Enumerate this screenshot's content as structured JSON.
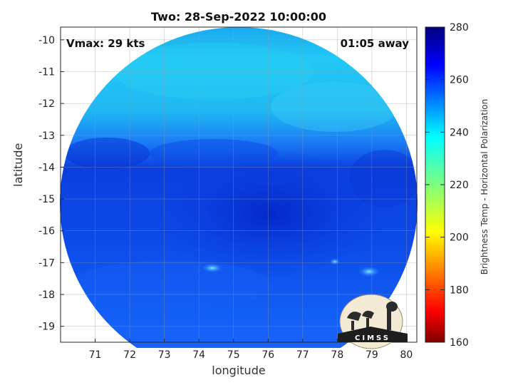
{
  "title": "Two: 28-Sep-2022 10:00:00",
  "vmax_label": "Vmax: 29 kts",
  "time_away_label": "01:05 away",
  "map": {
    "xlabel": "longitude",
    "ylabel": "latitude",
    "x_ticks": [
      "71",
      "72",
      "73",
      "74",
      "75",
      "76",
      "77",
      "78",
      "79",
      "80"
    ],
    "y_ticks": [
      "-10",
      "-11",
      "-12",
      "-13",
      "-14",
      "-15",
      "-16",
      "-17",
      "-18",
      "-19"
    ],
    "x_range": [
      70.0,
      80.3
    ],
    "y_range": [
      -19.5,
      -9.6
    ],
    "grid": true,
    "field": "microwave brightness temperature swath centred near 75.3E, 14.8S"
  },
  "colorbar": {
    "label": "Brightness Temp - Horizontal Polarization",
    "ticks": [
      "280",
      "260",
      "240",
      "220",
      "200",
      "180",
      "160"
    ],
    "range": [
      160,
      280
    ],
    "colormap": "jet"
  },
  "logo_text": "CIMSS",
  "colors": {
    "dark_blue": "#0a2fd8",
    "mid_blue": "#1560ff",
    "cyan": "#1fc4f4",
    "logo_bg": "#f2ead4"
  }
}
